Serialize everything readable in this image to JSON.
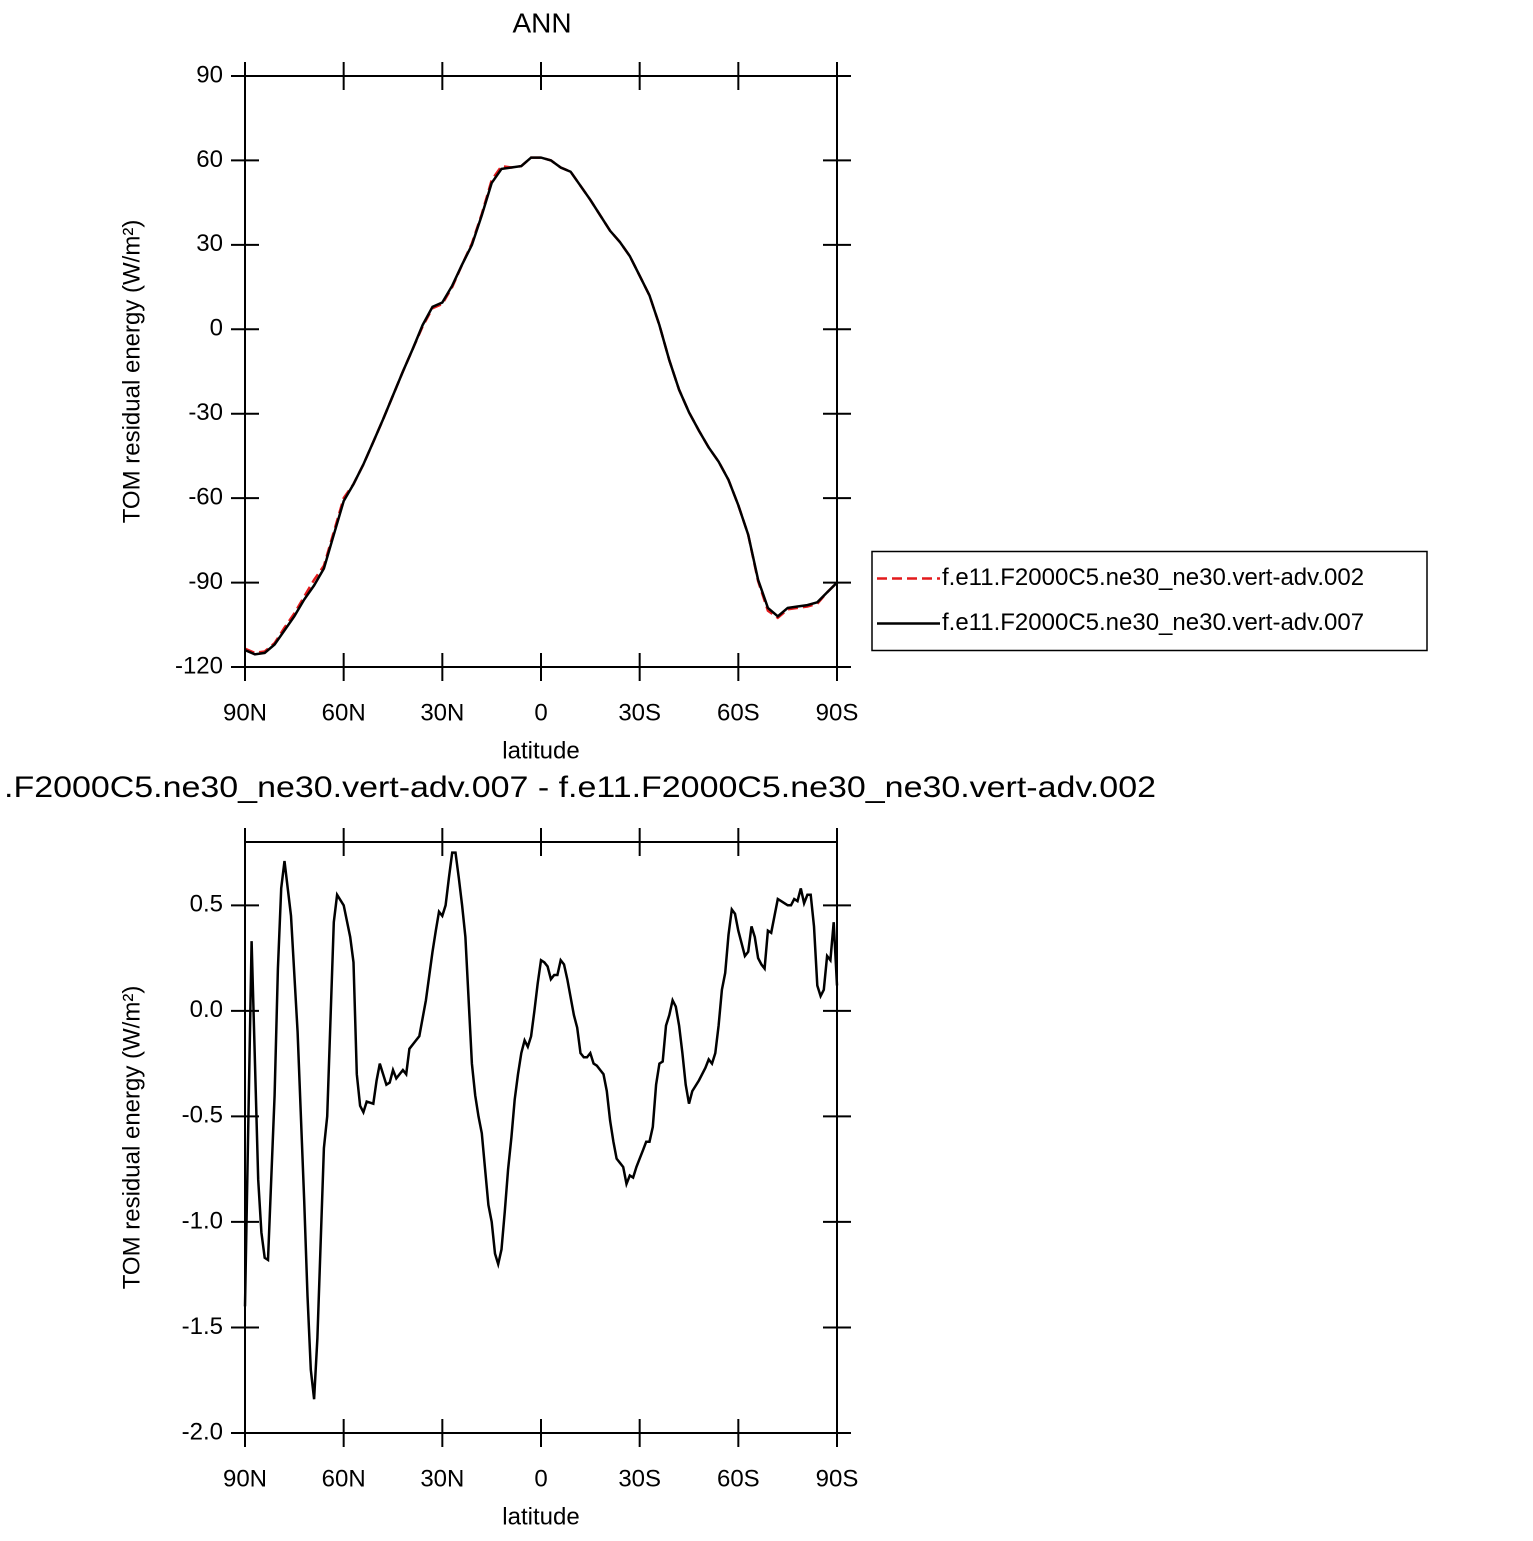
{
  "chart_data": [
    {
      "type": "line",
      "title": "ANN",
      "xlabel": "latitude",
      "ylabel": "TOM residual energy (W/m²)",
      "x": [
        90,
        87,
        84,
        81,
        78,
        75,
        72,
        69,
        66,
        63,
        60,
        57,
        54,
        51,
        48,
        45,
        42,
        39,
        36,
        33,
        30,
        27,
        24,
        21,
        18,
        15,
        12,
        9,
        6,
        3,
        0,
        -3,
        -6,
        -9,
        -12,
        -15,
        -18,
        -21,
        -24,
        -27,
        -30,
        -33,
        -36,
        -39,
        -42,
        -45,
        -48,
        -51,
        -54,
        -57,
        -60,
        -63,
        -66,
        -69,
        -72,
        -75,
        -78,
        -81,
        -84,
        -87,
        -90
      ],
      "series": [
        {
          "name": "f.e11.F2000C5.ne30_ne30.vert-adv.002",
          "color": "#e31a1c",
          "style": "dashed",
          "values": [
            -113.5,
            -115,
            -114.5,
            -111.5,
            -106,
            -101,
            -95,
            -89,
            -84,
            -72,
            -60,
            -55,
            -48,
            -40,
            -32,
            -23.5,
            -15,
            -7,
            1,
            7.5,
            9,
            15,
            23,
            30.5,
            41,
            53,
            58,
            57.5,
            58,
            61,
            61,
            60,
            57.5,
            56,
            51,
            46,
            40.5,
            35,
            31,
            26,
            19,
            12,
            1.5,
            -11,
            -21.5,
            -29.5,
            -36,
            -42,
            -47,
            -53.5,
            -62.5,
            -73,
            -89.5,
            -100,
            -102.5,
            -99.5,
            -99,
            -98.5,
            -97.5,
            -93.5,
            -90
          ]
        },
        {
          "name": "f.e11.F2000C5.ne30_ne30.vert-adv.007",
          "color": "#000000",
          "style": "solid",
          "values": [
            -114,
            -115.5,
            -115,
            -112,
            -107,
            -102,
            -96,
            -91,
            -85,
            -73,
            -61,
            -55,
            -48,
            -40,
            -32,
            -23.5,
            -15,
            -7,
            1.5,
            8,
            9.5,
            15.5,
            23,
            30,
            40.5,
            52,
            57,
            57.5,
            58,
            61,
            61,
            60,
            57.5,
            56,
            51,
            46,
            40.5,
            35,
            31,
            26,
            19,
            12,
            1.5,
            -11,
            -21.5,
            -29.5,
            -36,
            -42,
            -47,
            -53.5,
            -62.5,
            -73,
            -89,
            -99,
            -102,
            -99,
            -98.5,
            -98,
            -97,
            -93.5,
            -90
          ]
        }
      ],
      "xlim": [
        90,
        -90
      ],
      "xticks": [
        {
          "value": 90,
          "label": "90N"
        },
        {
          "value": 60,
          "label": "60N"
        },
        {
          "value": 30,
          "label": "30N"
        },
        0,
        {
          "value": -30,
          "label": "30S"
        },
        {
          "value": -60,
          "label": "60S"
        },
        {
          "value": -90,
          "label": "90S"
        }
      ],
      "ylim": [
        -120,
        90
      ],
      "yticks": [
        -120,
        -90,
        -60,
        -30,
        0,
        30,
        60,
        90
      ],
      "legend": "right"
    },
    {
      "type": "line",
      "title": ".F2000C5.ne30_ne30.vert-adv.007 - f.e11.F2000C5.ne30_ne30.vert-adv.002",
      "xlabel": "latitude",
      "ylabel": "TOM residual energy (W/m²)",
      "x": [
        90,
        88,
        86,
        85,
        84,
        83,
        81,
        80,
        79,
        78,
        76,
        74,
        72,
        71,
        70,
        69,
        68,
        66,
        65,
        63,
        62,
        60,
        58,
        57,
        56,
        55,
        54,
        53,
        51,
        50,
        49,
        47,
        46,
        45,
        44,
        42,
        41,
        40,
        38,
        37,
        35,
        33,
        32,
        31,
        30,
        29,
        28,
        27,
        26,
        25,
        24,
        23,
        21,
        20,
        19,
        18,
        17,
        16,
        15,
        14,
        13,
        12,
        11,
        10,
        9,
        8,
        7,
        6,
        5,
        4,
        3,
        2,
        1,
        0,
        -1,
        -2,
        -3,
        -4,
        -5,
        -6,
        -7,
        -8,
        -10,
        -11,
        -12,
        -13,
        -14,
        -15,
        -16,
        -17,
        -18,
        -19,
        -20,
        -21,
        -22,
        -23,
        -24,
        -25,
        -26,
        -27,
        -28,
        -29,
        -30,
        -31,
        -32,
        -33,
        -34,
        -35,
        -36,
        -37,
        -38,
        -39,
        -40,
        -41,
        -42,
        -43,
        -44,
        -45,
        -46,
        -48,
        -50,
        -51,
        -52,
        -53,
        -54,
        -55,
        -56,
        -57,
        -58,
        -59,
        -60,
        -61,
        -62,
        -63,
        -64,
        -65,
        -66,
        -67,
        -68,
        -69,
        -70,
        -71,
        -72,
        -73,
        -74,
        -75,
        -76,
        -77,
        -78,
        -79,
        -80,
        -81,
        -82,
        -83,
        -84,
        -85,
        -86,
        -87,
        -88,
        -89,
        -90
      ],
      "series": [
        {
          "color": "#000000",
          "style": "solid",
          "values": [
            -1.4,
            0.33,
            -0.8,
            -1.05,
            -1.17,
            -1.18,
            -0.4,
            0.2,
            0.58,
            0.71,
            0.45,
            -0.1,
            -0.9,
            -1.35,
            -1.7,
            -1.84,
            -1.55,
            -0.65,
            -0.5,
            0.42,
            0.55,
            0.5,
            0.35,
            0.23,
            -0.3,
            -0.45,
            -0.48,
            -0.43,
            -0.44,
            -0.33,
            -0.25,
            -0.35,
            -0.34,
            -0.28,
            -0.32,
            -0.28,
            -0.3,
            -0.18,
            -0.14,
            -0.12,
            0.05,
            0.28,
            0.38,
            0.47,
            0.45,
            0.5,
            0.63,
            0.75,
            0.75,
            0.63,
            0.5,
            0.35,
            -0.25,
            -0.4,
            -0.5,
            -0.58,
            -0.75,
            -0.92,
            -1.0,
            -1.15,
            -1.2,
            -1.13,
            -0.95,
            -0.75,
            -0.6,
            -0.42,
            -0.3,
            -0.2,
            -0.14,
            -0.17,
            -0.12,
            0,
            0.13,
            0.24,
            0.23,
            0.21,
            0.15,
            0.17,
            0.17,
            0.24,
            0.22,
            0.15,
            -0.02,
            -0.08,
            -0.2,
            -0.22,
            -0.22,
            -0.2,
            -0.25,
            -0.26,
            -0.28,
            -0.3,
            -0.38,
            -0.52,
            -0.62,
            -0.7,
            -0.72,
            -0.74,
            -0.82,
            -0.78,
            -0.79,
            -0.74,
            -0.7,
            -0.66,
            -0.62,
            -0.62,
            -0.55,
            -0.35,
            -0.25,
            -0.24,
            -0.07,
            -0.02,
            0.05,
            0.02,
            -0.07,
            -0.2,
            -0.35,
            -0.44,
            -0.38,
            -0.33,
            -0.27,
            -0.23,
            -0.25,
            -0.2,
            -0.07,
            0.1,
            0.18,
            0.36,
            0.48,
            0.46,
            0.38,
            0.32,
            0.26,
            0.28,
            0.4,
            0.35,
            0.25,
            0.22,
            0.2,
            0.38,
            0.37,
            0.45,
            0.53,
            0.52,
            0.51,
            0.5,
            0.5,
            0.53,
            0.52,
            0.58,
            0.51,
            0.55,
            0.55,
            0.4,
            0.12,
            0.07,
            0.1,
            0.26,
            0.24,
            0.42,
            0.12
          ]
        }
      ],
      "xlim": [
        90,
        -90
      ],
      "xticks": [
        {
          "value": 90,
          "label": "90N"
        },
        {
          "value": 60,
          "label": "60N"
        },
        {
          "value": 30,
          "label": "30N"
        },
        0,
        {
          "value": -30,
          "label": "30S"
        },
        {
          "value": -60,
          "label": "60S"
        },
        {
          "value": -90,
          "label": "90S"
        }
      ],
      "ylim": [
        -2,
        0.8
      ],
      "yticks": [
        {
          "value": -2,
          "label": "-2.0"
        },
        -1.5,
        {
          "value": -1,
          "label": "-1.0"
        },
        -0.5,
        {
          "value": 0,
          "label": "0.0"
        },
        0.5
      ]
    }
  ]
}
